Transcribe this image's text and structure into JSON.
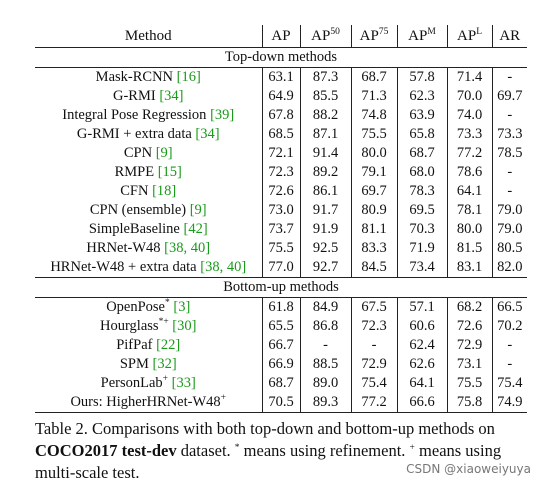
{
  "table": {
    "columns": [
      {
        "text": "Method"
      },
      {
        "text": "AP"
      },
      {
        "text": "AP",
        "sup": "50"
      },
      {
        "text": "AP",
        "sup": "75"
      },
      {
        "text": "AP",
        "sup": "M"
      },
      {
        "text": "AP",
        "sup": "L"
      },
      {
        "text": "AR"
      }
    ],
    "sections": [
      {
        "title": "Top-down methods",
        "rows": [
          {
            "method": "Mask-RCNN",
            "cite": "[16]",
            "values": [
              "63.1",
              "87.3",
              "68.7",
              "57.8",
              "71.4",
              "-"
            ]
          },
          {
            "method": "G-RMI",
            "cite": "[34]",
            "values": [
              "64.9",
              "85.5",
              "71.3",
              "62.3",
              "70.0",
              "69.7"
            ]
          },
          {
            "method": "Integral Pose Regression",
            "cite": "[39]",
            "values": [
              "67.8",
              "88.2",
              "74.8",
              "63.9",
              "74.0",
              "-"
            ]
          },
          {
            "method": "G-RMI + extra data",
            "cite": "[34]",
            "values": [
              "68.5",
              "87.1",
              "75.5",
              "65.8",
              "73.3",
              "73.3"
            ]
          },
          {
            "method": "CPN",
            "cite": "[9]",
            "values": [
              "72.1",
              "91.4",
              "80.0",
              "68.7",
              "77.2",
              "78.5"
            ]
          },
          {
            "method": "RMPE",
            "cite": "[15]",
            "values": [
              "72.3",
              "89.2",
              "79.1",
              "68.0",
              "78.6",
              "-"
            ]
          },
          {
            "method": "CFN",
            "cite": "[18]",
            "values": [
              "72.6",
              "86.1",
              "69.7",
              "78.3",
              "64.1",
              "-"
            ]
          },
          {
            "method": "CPN (ensemble)",
            "cite": "[9]",
            "values": [
              "73.0",
              "91.7",
              "80.9",
              "69.5",
              "78.1",
              "79.0"
            ]
          },
          {
            "method": "SimpleBaseline",
            "cite": "[42]",
            "values": [
              "73.7",
              "91.9",
              "81.1",
              "70.3",
              "80.0",
              "79.0"
            ]
          },
          {
            "method": "HRNet-W48",
            "cite": "[38, 40]",
            "values": [
              "75.5",
              "92.5",
              "83.3",
              "71.9",
              "81.5",
              "80.5"
            ]
          },
          {
            "method": "HRNet-W48 + extra data",
            "cite": "[38, 40]",
            "values": [
              "77.0",
              "92.7",
              "84.5",
              "73.4",
              "83.1",
              "82.0"
            ]
          }
        ]
      },
      {
        "title": "Bottom-up methods",
        "rows": [
          {
            "method": "OpenPose",
            "sup": "*",
            "cite": "[3]",
            "values": [
              "61.8",
              "84.9",
              "67.5",
              "57.1",
              "68.2",
              "66.5"
            ]
          },
          {
            "method": "Hourglass",
            "sup": "*+",
            "cite": "[30]",
            "values": [
              "65.5",
              "86.8",
              "72.3",
              "60.6",
              "72.6",
              "70.2"
            ]
          },
          {
            "method": "PifPaf",
            "cite": "[22]",
            "values": [
              "66.7",
              "-",
              "-",
              "62.4",
              "72.9",
              "-"
            ]
          },
          {
            "method": "SPM",
            "cite": "[32]",
            "values": [
              "66.9",
              "88.5",
              "72.9",
              "62.6",
              "73.1",
              "-"
            ]
          },
          {
            "method": "PersonLab",
            "sup": "+",
            "cite": "[33]",
            "values": [
              "68.7",
              "89.0",
              "75.4",
              "64.1",
              "75.5",
              "75.4"
            ]
          },
          {
            "method": "Ours: HigherHRNet-W48",
            "sup": "+",
            "values": [
              "70.5",
              "89.3",
              "77.2",
              "66.6",
              "75.8",
              "74.9"
            ]
          }
        ]
      }
    ]
  },
  "caption": [
    {
      "text": "Table 2. Comparisons with both top-down and bottom-up methods on "
    },
    {
      "text": "COCO2017 test-dev",
      "bold": true
    },
    {
      "text": " dataset. "
    },
    {
      "text": "*",
      "sup": true
    },
    {
      "text": " means using refinement. "
    },
    {
      "text": "+",
      "sup": true
    },
    {
      "text": " means using multi-scale test."
    }
  ],
  "watermark": "CSDN @xiaoweiyuya"
}
